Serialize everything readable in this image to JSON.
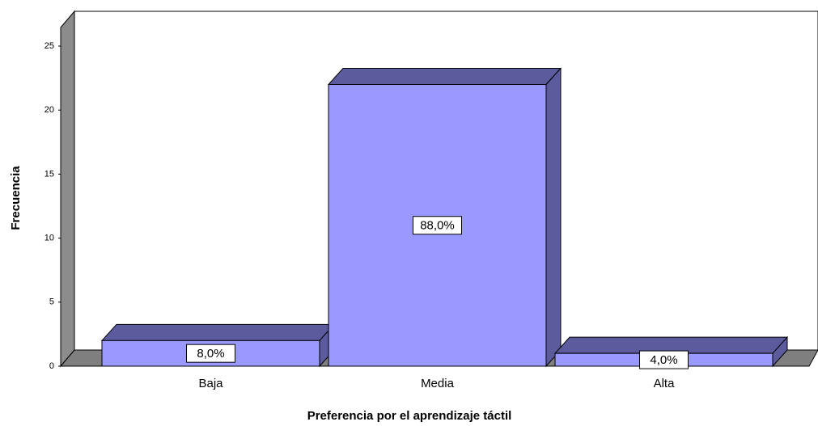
{
  "chart_data": {
    "type": "bar3d",
    "categories": [
      "Baja",
      "Media",
      "Alta"
    ],
    "values": [
      2,
      22,
      1
    ],
    "percent_labels": [
      "8,0%",
      "88,0%",
      "4,0%"
    ],
    "color": "#9999ff",
    "side_color": "#5b5b9e",
    "ylim": [
      0,
      25
    ],
    "yticks": [
      0,
      5,
      10,
      15,
      20,
      25
    ],
    "xlabel": "Preferencia por el aprendizaje táctil",
    "ylabel": "Frecuencia"
  }
}
